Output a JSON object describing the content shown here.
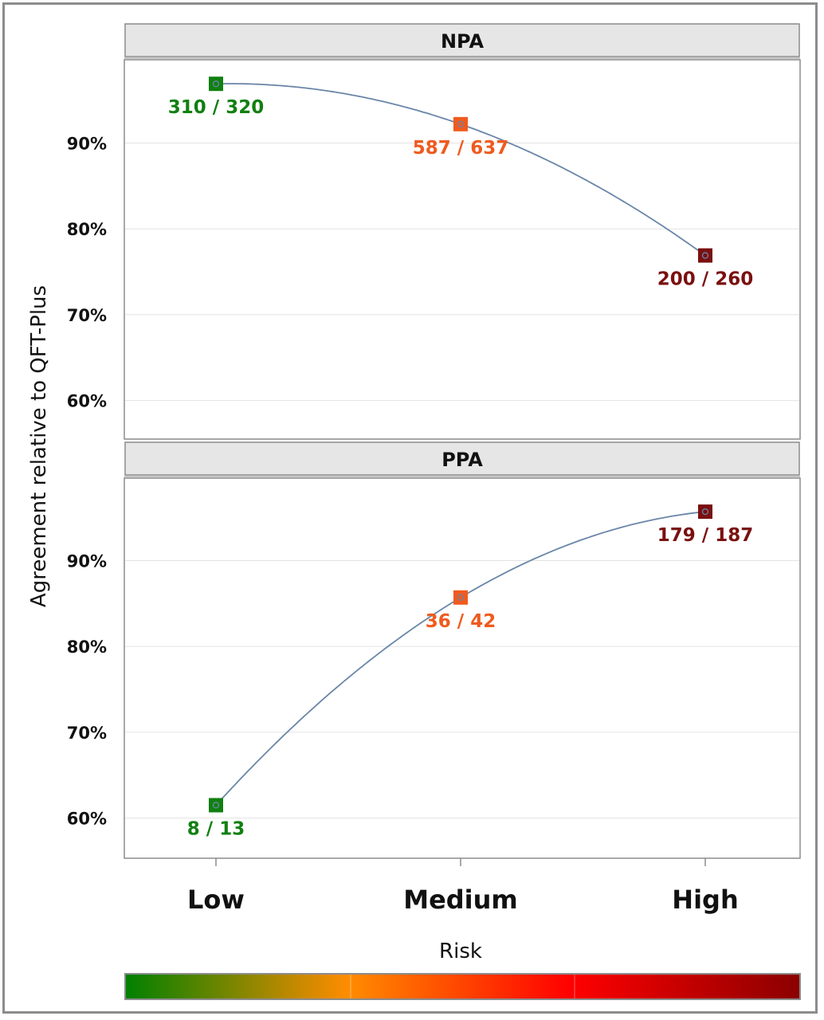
{
  "chart_data": {
    "type": "line",
    "xlabel": "Risk",
    "ylabel": "Agreement relative to QFT-Plus",
    "categories": [
      "Low",
      "Medium",
      "High"
    ],
    "category_colors": [
      "#118011",
      "#f05a1e",
      "#7a1010"
    ],
    "yticks": [
      "60%",
      "70%",
      "80%",
      "90%"
    ],
    "ytick_values": [
      60,
      70,
      80,
      90
    ],
    "ylim": [
      55.5,
      99.5
    ],
    "grid": true,
    "legend": "colorbar-bottom",
    "colorbar_colors": [
      "#008000",
      "#ff8c00",
      "#ff0000",
      "#8b0000"
    ],
    "panels": [
      {
        "title": "NPA",
        "values": [
          96.9,
          92.2,
          76.9
        ],
        "labels": [
          "310 / 320",
          "587 / 637",
          "200 / 260"
        ]
      },
      {
        "title": "PPA",
        "values": [
          61.5,
          85.7,
          95.7
        ],
        "labels": [
          "8 / 13",
          "36 / 42",
          "179 / 187"
        ]
      }
    ]
  }
}
